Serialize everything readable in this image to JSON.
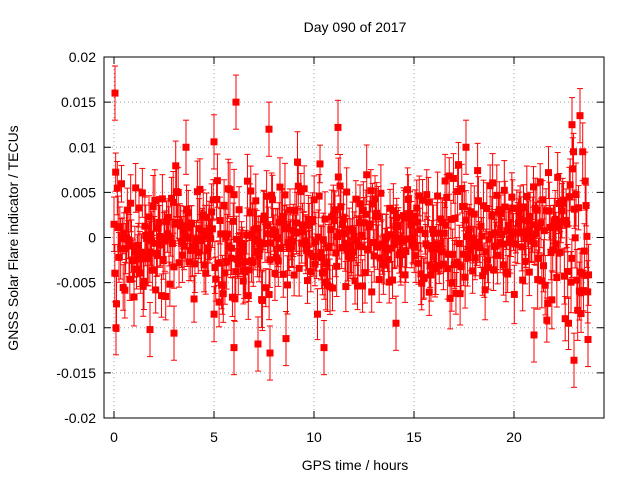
{
  "chart_data": {
    "type": "scatter",
    "title": "Day 090 of 2017",
    "xlabel": "GPS time / hours",
    "ylabel": "GNSS Solar Flare indicator / TECUs",
    "xlim": [
      -0.5,
      24.5
    ],
    "ylim": [
      -0.02,
      0.02
    ],
    "xticks": [
      0,
      5,
      10,
      15,
      20
    ],
    "yticks": [
      -0.02,
      -0.015,
      -0.01,
      -0.005,
      0,
      0.005,
      0.01,
      0.015,
      0.02
    ],
    "ytick_labels": [
      "-0.02",
      "-0.015",
      "-0.01",
      "-0.005",
      "0",
      "0.005",
      "0.01",
      "0.015",
      "0.02"
    ],
    "grid": true,
    "series_color": "#ff0000",
    "x_extent_hours": [
      0,
      23.75
    ],
    "sample_interval_hours": 0.0417,
    "typical_spread": 0.0035,
    "typical_error_bar": 0.0025,
    "outliers": [
      {
        "x": 0.05,
        "y": 0.016
      },
      {
        "x": 6.1,
        "y": 0.015
      },
      {
        "x": 7.75,
        "y": 0.012
      },
      {
        "x": 11.2,
        "y": 0.0122
      },
      {
        "x": 5.0,
        "y": 0.0106
      },
      {
        "x": 3.6,
        "y": 0.01
      },
      {
        "x": 17.6,
        "y": 0.01
      },
      {
        "x": 23.3,
        "y": 0.0135
      },
      {
        "x": 22.9,
        "y": 0.0125
      },
      {
        "x": 0.1,
        "y": -0.01
      },
      {
        "x": 1.8,
        "y": -0.0102
      },
      {
        "x": 3.0,
        "y": -0.0106
      },
      {
        "x": 6.0,
        "y": -0.0122
      },
      {
        "x": 7.2,
        "y": -0.0118
      },
      {
        "x": 7.8,
        "y": -0.0128
      },
      {
        "x": 8.6,
        "y": -0.0112
      },
      {
        "x": 10.5,
        "y": -0.0122
      },
      {
        "x": 14.1,
        "y": -0.0095
      },
      {
        "x": 21.0,
        "y": -0.0108
      },
      {
        "x": 23.0,
        "y": -0.0136
      },
      {
        "x": 23.7,
        "y": -0.0113
      }
    ]
  }
}
